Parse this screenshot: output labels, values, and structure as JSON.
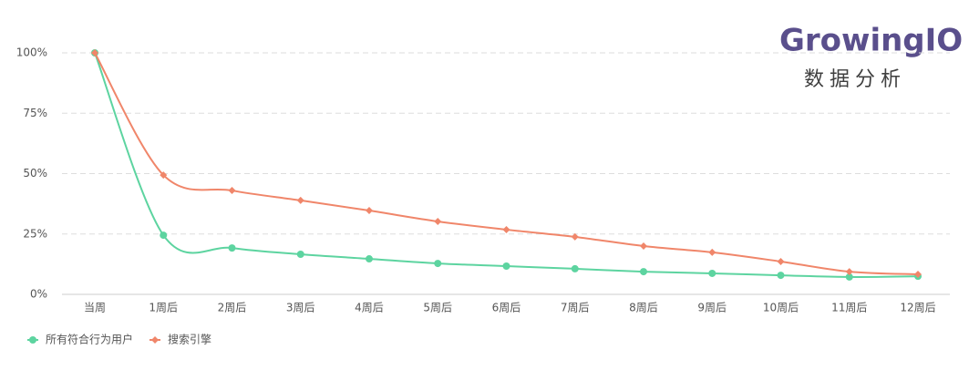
{
  "logo": {
    "name": "GrowingIO",
    "tagline": "数据分析"
  },
  "chart_data": {
    "type": "line",
    "categories": [
      "当周",
      "1周后",
      "2周后",
      "3周后",
      "4周后",
      "5周后",
      "6周后",
      "7周后",
      "8周后",
      "9周后",
      "10周后",
      "11周后",
      "12周后"
    ],
    "series": [
      {
        "name": "所有符合行为用户",
        "color": "#5dd4a0",
        "values": [
          100,
          24.5,
          19.2,
          16.6,
          14.7,
          12.8,
          11.7,
          10.6,
          9.4,
          8.7,
          7.9,
          7.2,
          7.5
        ]
      },
      {
        "name": "搜索引擎",
        "color": "#f0866a",
        "values": [
          100,
          49.4,
          43,
          38.9,
          34.7,
          30.2,
          26.8,
          23.8,
          20,
          17.4,
          13.6,
          9.4,
          8.3
        ]
      }
    ],
    "ylim": [
      0,
      100
    ],
    "yticks": [
      {
        "value": 0,
        "label": "0%"
      },
      {
        "value": 25,
        "label": "25%"
      },
      {
        "value": 50,
        "label": "50%"
      },
      {
        "value": 75,
        "label": "75%"
      },
      {
        "value": 100,
        "label": "100%"
      }
    ],
    "grid": true,
    "legend": "bottom-left"
  }
}
